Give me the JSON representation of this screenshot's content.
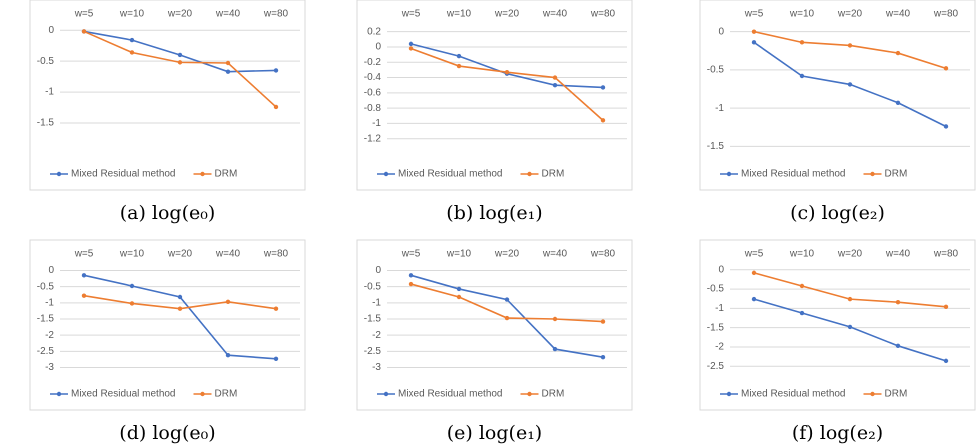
{
  "chart_data": [
    {
      "type": "line",
      "caption": "(a) log(e₀)",
      "categories": [
        "w=5",
        "w=10",
        "w=20",
        "w=40",
        "w=80"
      ],
      "series": [
        {
          "name": "Mixed Residual method",
          "color": "#4472c4",
          "values": [
            -0.02,
            -0.16,
            -0.4,
            -0.67,
            -0.65
          ]
        },
        {
          "name": "DRM",
          "color": "#ed7d31",
          "values": [
            -0.02,
            -0.36,
            -0.52,
            -0.53,
            -1.24
          ]
        }
      ],
      "ylim": [
        -2,
        0.1
      ],
      "yticks": [
        0,
        -0.5,
        -1,
        -1.5
      ],
      "grid": true,
      "legend": "bottom"
    },
    {
      "type": "line",
      "caption": "(b) log(e₁)",
      "categories": [
        "w=5",
        "w=10",
        "w=20",
        "w=40",
        "w=80"
      ],
      "series": [
        {
          "name": "Mixed Residual method",
          "color": "#4472c4",
          "values": [
            0.04,
            -0.12,
            -0.35,
            -0.5,
            -0.53
          ]
        },
        {
          "name": "DRM",
          "color": "#ed7d31",
          "values": [
            -0.02,
            -0.25,
            -0.33,
            -0.4,
            -0.96
          ]
        }
      ],
      "ylim": [
        -1.4,
        0.3
      ],
      "yticks": [
        0.2,
        0,
        -0.2,
        -0.4,
        -0.6,
        -0.8,
        -1,
        -1.2
      ],
      "grid": true,
      "legend": "bottom"
    },
    {
      "type": "line",
      "caption": "(c) log(e₂)",
      "categories": [
        "w=5",
        "w=10",
        "w=20",
        "w=40",
        "w=80"
      ],
      "series": [
        {
          "name": "Mixed Residual method",
          "color": "#4472c4",
          "values": [
            -0.14,
            -0.58,
            -0.69,
            -0.93,
            -1.24
          ]
        },
        {
          "name": "DRM",
          "color": "#ed7d31",
          "values": [
            0,
            -0.14,
            -0.18,
            -0.28,
            -0.48
          ]
        }
      ],
      "ylim": [
        -1.6,
        0.1
      ],
      "yticks": [
        0,
        -0.5,
        -1,
        -1.5
      ],
      "grid": true,
      "legend": "bottom"
    },
    {
      "type": "line",
      "caption": "(d) log(e₀)",
      "categories": [
        "w=5",
        "w=10",
        "w=20",
        "w=40",
        "w=80"
      ],
      "series": [
        {
          "name": "Mixed Residual method",
          "color": "#4472c4",
          "values": [
            -0.15,
            -0.48,
            -0.82,
            -2.62,
            -2.73
          ]
        },
        {
          "name": "DRM",
          "color": "#ed7d31",
          "values": [
            -0.78,
            -1.02,
            -1.18,
            -0.97,
            -1.18
          ]
        }
      ],
      "ylim": [
        -3.2,
        0.2
      ],
      "yticks": [
        0,
        -0.5,
        -1,
        -1.5,
        -2,
        -2.5,
        -3
      ],
      "grid": true,
      "legend": "bottom"
    },
    {
      "type": "line",
      "caption": "(e) log(e₁)",
      "categories": [
        "w=5",
        "w=10",
        "w=20",
        "w=40",
        "w=80"
      ],
      "series": [
        {
          "name": "Mixed Residual method",
          "color": "#4472c4",
          "values": [
            -0.15,
            -0.57,
            -0.9,
            -2.43,
            -2.68
          ]
        },
        {
          "name": "DRM",
          "color": "#ed7d31",
          "values": [
            -0.42,
            -0.82,
            -1.47,
            -1.5,
            -1.58
          ]
        }
      ],
      "ylim": [
        -3.2,
        0.2
      ],
      "yticks": [
        0,
        -0.5,
        -1,
        -1.5,
        -2,
        -2.5,
        -3
      ],
      "grid": true,
      "legend": "bottom"
    },
    {
      "type": "line",
      "caption": "(f) log(e₂)",
      "categories": [
        "w=5",
        "w=10",
        "w=20",
        "w=40",
        "w=80"
      ],
      "series": [
        {
          "name": "Mixed Residual method",
          "color": "#4472c4",
          "values": [
            -0.76,
            -1.12,
            -1.48,
            -1.97,
            -2.36
          ]
        },
        {
          "name": "DRM",
          "color": "#ed7d31",
          "values": [
            -0.08,
            -0.42,
            -0.76,
            -0.84,
            -0.96
          ]
        }
      ],
      "ylim": [
        -2.7,
        0.15
      ],
      "yticks": [
        0,
        -0.5,
        -1,
        -1.5,
        -2,
        -2.5
      ],
      "grid": true,
      "legend": "bottom"
    }
  ]
}
